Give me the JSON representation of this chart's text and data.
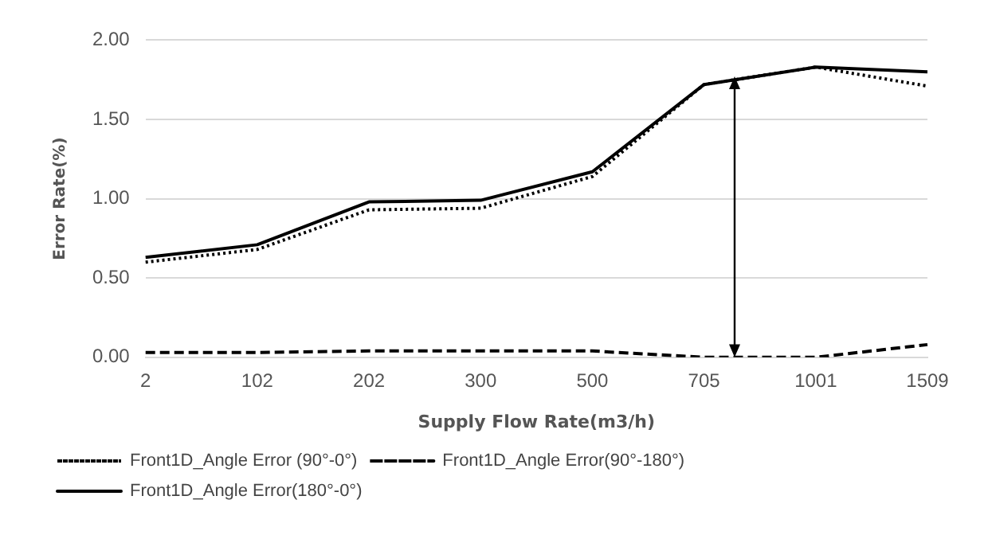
{
  "chart_data": {
    "type": "line",
    "xlabel": "Supply Flow Rate(m3/h)",
    "ylabel": "Error Rate(%)",
    "categories": [
      "2",
      "102",
      "202",
      "300",
      "500",
      "705",
      "1001",
      "1509"
    ],
    "series": [
      {
        "name": "Front1D_Angle Error (90°-0°)",
        "color": "#000000",
        "line_style": "dotted",
        "values": [
          0.6,
          0.68,
          0.93,
          0.94,
          1.14,
          1.72,
          1.83,
          1.71
        ]
      },
      {
        "name": "Front1D_Angle Error(90°-180°)",
        "color": "#000000",
        "line_style": "dashed",
        "values": [
          0.03,
          0.03,
          0.04,
          0.04,
          0.04,
          0.0,
          0.0,
          0.08
        ]
      },
      {
        "name": "Front1D_Angle Error(180°-0°)",
        "color": "#000000",
        "line_style": "solid",
        "values": [
          0.63,
          0.71,
          0.98,
          0.99,
          1.17,
          1.72,
          1.83,
          1.8
        ]
      }
    ],
    "ylim": [
      0,
      2
    ],
    "yticks": [
      {
        "value": 0,
        "label": "0.00"
      },
      {
        "value": 0.5,
        "label": "0.50"
      },
      {
        "value": 1,
        "label": "1.00"
      },
      {
        "value": 1.5,
        "label": "1.50"
      },
      {
        "value": 2,
        "label": "2.00"
      }
    ],
    "grid": "y",
    "legend": "bottom",
    "marker": "none"
  }
}
